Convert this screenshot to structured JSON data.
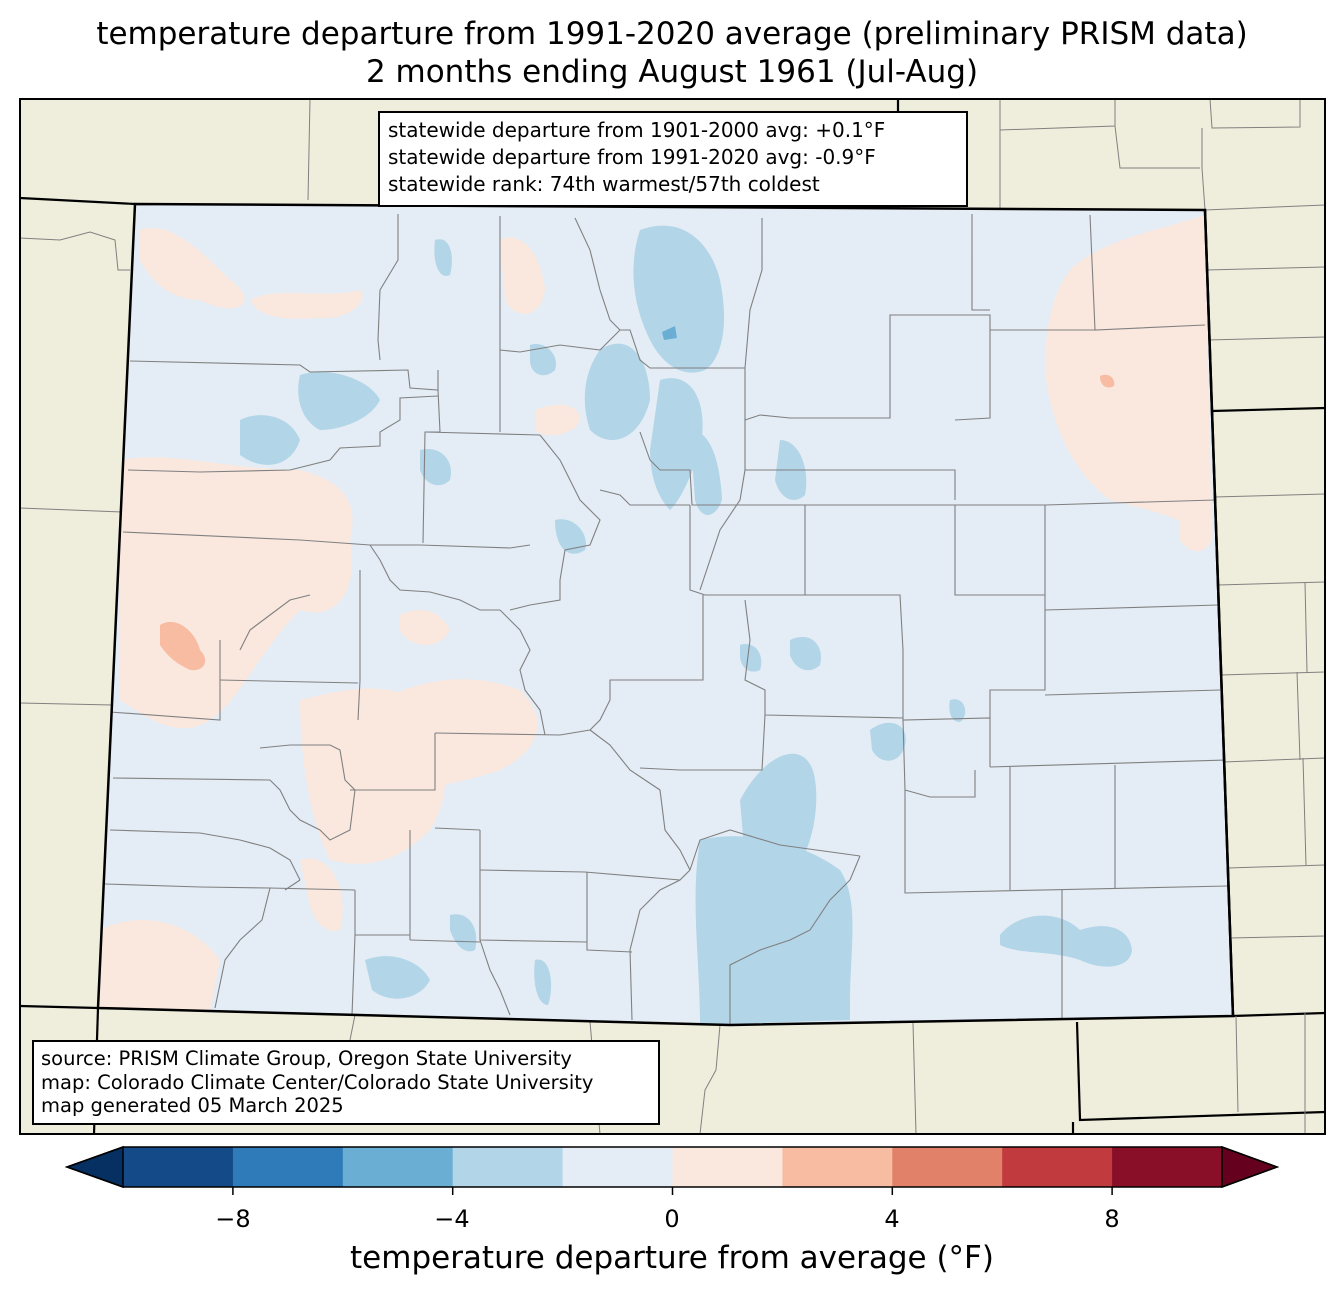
{
  "title": {
    "line1": "temperature departure from 1991-2020 average (preliminary PRISM data)",
    "line2": "2 months ending August 1961 (Jul-Aug)"
  },
  "stats": {
    "line1": "statewide departure from 1901-2000 avg: +0.1°F",
    "line2": "statewide departure from 1991-2020 avg: -0.9°F",
    "line3": "statewide rank: 74th warmest/57th coldest"
  },
  "source": {
    "line1": "source: PRISM Climate Group, Oregon State University",
    "line2": "map: Colorado Climate Center/Colorado State University",
    "line3": "map generated 05 March 2025"
  },
  "colorbar": {
    "label": "temperature departure from average (°F)",
    "ticks": [
      "−8",
      "−4",
      "0",
      "4",
      "8"
    ],
    "bins": [
      {
        "from": -10,
        "to": -8,
        "color": "#144a87"
      },
      {
        "from": -8,
        "to": -6,
        "color": "#2f7ab8"
      },
      {
        "from": -6,
        "to": -4,
        "color": "#6aaed4"
      },
      {
        "from": -4,
        "to": -2,
        "color": "#b2d5e8"
      },
      {
        "from": -2,
        "to": 0,
        "color": "#e4edf5"
      },
      {
        "from": 0,
        "to": 2,
        "color": "#fae8df"
      },
      {
        "from": 2,
        "to": 4,
        "color": "#f8bca2"
      },
      {
        "from": 4,
        "to": 6,
        "color": "#e2816a"
      },
      {
        "from": 6,
        "to": 8,
        "color": "#c03a3e"
      },
      {
        "from": 8,
        "to": 10,
        "color": "#890e27"
      }
    ],
    "under_color": "#062f62",
    "over_color": "#66001f"
  },
  "colors": {
    "land_outside": "#efeddc",
    "state_base": "#e4edf5",
    "warm_slight": "#fae8df",
    "cool_moderate": "#b2d5e8",
    "cool_strong": "#6aaed4",
    "warm_moderate": "#f8bca2",
    "county_lines": "#808080"
  }
}
